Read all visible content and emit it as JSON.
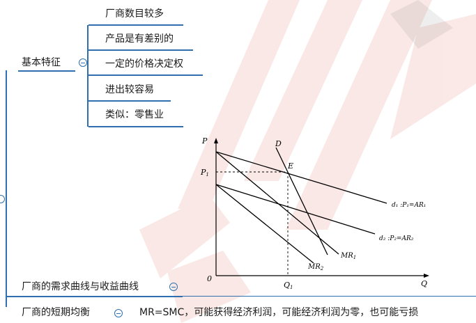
{
  "mindmap": {
    "branch1": {
      "label": "基本特征",
      "children": [
        "厂商数目较多",
        "产品是有差别的",
        "一定的价格决定权",
        "进出较容易",
        "类似：零售业"
      ]
    },
    "branch2": {
      "label": "厂商的需求曲线与收益曲线"
    },
    "branch3": {
      "label": "厂商的短期均衡",
      "note": "MR=SMC，可能获得经济利润，可能经济利润为零，也可能亏损"
    }
  },
  "diagram": {
    "axis_y": "P",
    "axis_x": "Q",
    "origin": "0",
    "p1": "P",
    "p1_sub": "1",
    "q1": "Q",
    "q1_sub": "1",
    "point_e": "E",
    "curve_D": "D",
    "mr1": "MR",
    "mr1_sub": "1",
    "mr2": "MR",
    "mr2_sub": "2",
    "d1_label": "d₁ :P₁=AR₁",
    "d2_label": "d₂ :P₂=AR₂"
  },
  "colors": {
    "branch_line": "#2f6fb0",
    "watermark": "#d94a3a"
  }
}
